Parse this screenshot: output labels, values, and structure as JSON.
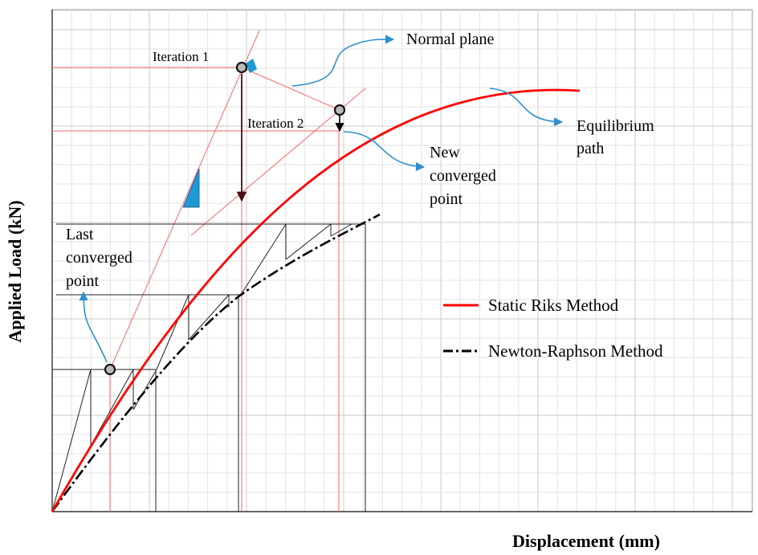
{
  "axes": {
    "x_label": "Displacement (mm)",
    "y_label": "Applied Load (kN)"
  },
  "annotations": {
    "iteration_1": "Iteration 1",
    "iteration_2": "Iteration 2",
    "normal_plane": "Normal plane",
    "equilibrium_path": [
      "Equilibrium",
      "path"
    ],
    "new_converged_point": [
      "New",
      "converged",
      "point"
    ],
    "last_converged_point": [
      "Last",
      "converged",
      "point"
    ]
  },
  "legend": {
    "riks": "Static Riks Method",
    "newton": "Newton-Raphson Method"
  },
  "colors": {
    "riks_curve": "#ff0000",
    "guide_lines": "#ff6666",
    "newton_curve": "#000000",
    "callout_arrows": "#2e8fcf",
    "wedge_fill": "#1f9ad6",
    "grid_minor": "#e3e3e3",
    "grid_major": "#c8c8c8"
  }
}
